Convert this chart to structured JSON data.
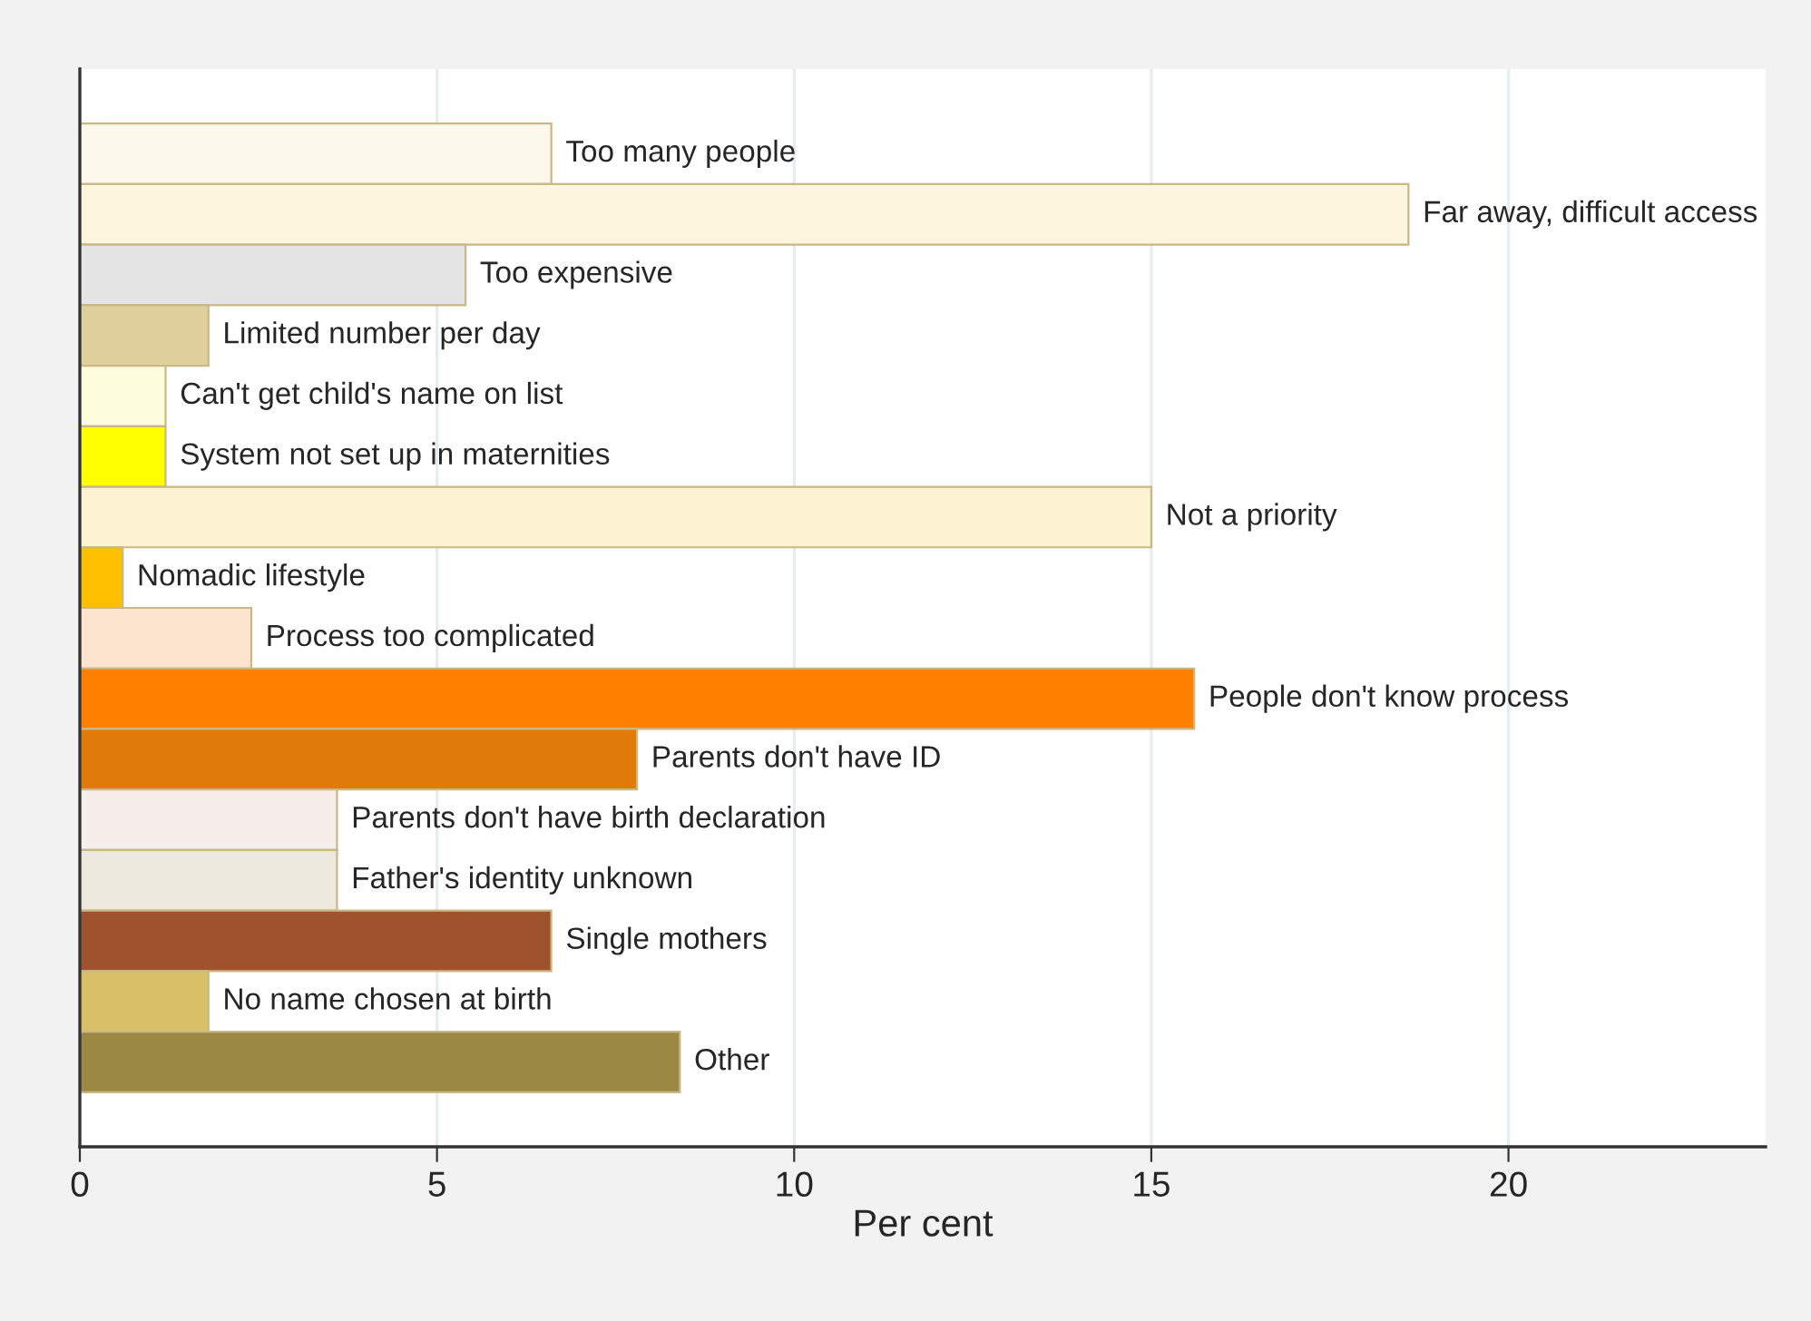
{
  "chart_data": {
    "type": "bar",
    "orientation": "horizontal",
    "xlabel": "Per cent",
    "categories": [
      "Too many people",
      "Far away, difficult access",
      "Too expensive",
      "Limited number per day",
      "Can't get child's name on list",
      "System not set up in maternities",
      "Not a priority",
      "Nomadic lifestyle",
      "Process too complicated",
      "People don't know process",
      "Parents don't have ID",
      "Parents don't have birth declaration",
      "Father's identity unknown",
      "Single mothers",
      "No name chosen at birth",
      "Other"
    ],
    "values": [
      6.6,
      18.6,
      5.4,
      1.8,
      1.2,
      1.2,
      15.0,
      0.6,
      2.4,
      15.6,
      7.8,
      3.6,
      3.6,
      6.6,
      1.8,
      8.4
    ],
    "colors": [
      "#fdf8ec",
      "#fdf5dd",
      "#e4e4e4",
      "#e0d19c",
      "#fefddb",
      "#ffff00",
      "#fdf3d2",
      "#fdc000",
      "#fde4cf",
      "#fd8000",
      "#e07b09",
      "#f5eeea",
      "#ece8dd",
      "#a0522d",
      "#d8c068",
      "#9b8943"
    ],
    "xlim": [
      0,
      23.6
    ],
    "xticks": [
      0,
      5,
      10,
      15,
      20
    ],
    "grid": "x",
    "tick_labels": "x"
  }
}
